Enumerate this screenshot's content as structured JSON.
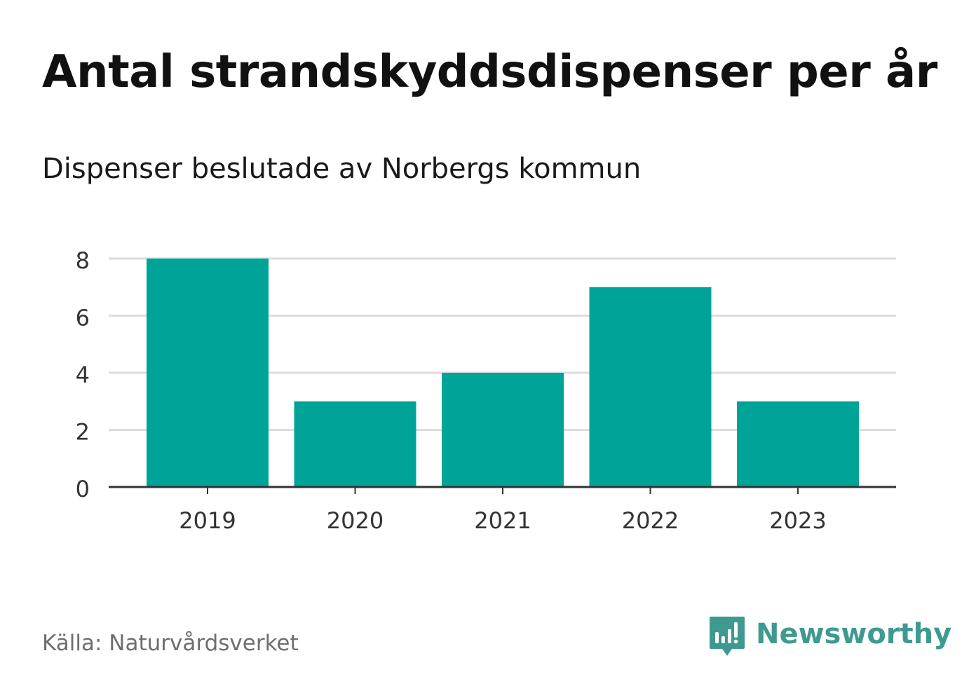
{
  "chart_data": {
    "type": "bar",
    "title": "Antal strandskyddsdispenser per år",
    "subtitle": "Dispenser beslutade av Norbergs kommun",
    "categories": [
      "2019",
      "2020",
      "2021",
      "2022",
      "2023"
    ],
    "values": [
      8,
      3,
      4,
      7,
      3
    ],
    "xlabel": "",
    "ylabel": "",
    "ylim": [
      0,
      8
    ],
    "yticks": [
      0,
      2,
      4,
      6,
      8
    ],
    "grid": true,
    "bar_color": "#00a398",
    "grid_color": "#dddddd",
    "axis_color": "#333333"
  },
  "footer": {
    "source": "Källa: Naturvårdsverket",
    "brand": "Newsworthy",
    "brand_icon": "newsworthy-logo-icon",
    "brand_color": "#3e9a8f"
  }
}
